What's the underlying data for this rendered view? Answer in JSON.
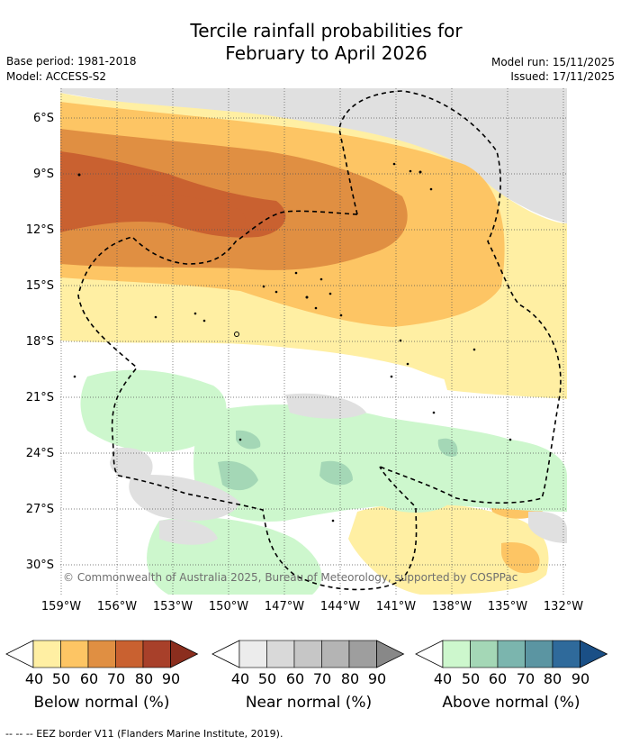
{
  "title": {
    "line1": "Tercile rainfall probabilities for",
    "line2": "February to April 2026"
  },
  "meta": {
    "base_period": "Base period: 1981-2018",
    "model": "Model: ACCESS-S2",
    "model_run": "Model run: 15/11/2025",
    "issued": "Issued: 17/11/2025"
  },
  "map": {
    "lat_labels": [
      "6°S",
      "9°S",
      "12°S",
      "15°S",
      "18°S",
      "21°S",
      "24°S",
      "27°S",
      "30°S"
    ],
    "lon_labels": [
      "159°W",
      "156°W",
      "153°W",
      "150°W",
      "147°W",
      "144°W",
      "141°W",
      "138°W",
      "135°W",
      "132°W"
    ],
    "copyright": "© Commonwealth of Australia 2025, Bureau of Meteorology, supported by COSPPac"
  },
  "colorbars": [
    {
      "title": "Below normal (%)",
      "ticks": [
        "40",
        "50",
        "60",
        "70",
        "80",
        "90"
      ],
      "colors": [
        "#ffefa3",
        "#fdc564",
        "#e08f42",
        "#c96130",
        "#a8402a",
        "#8b2e1e"
      ]
    },
    {
      "title": "Near normal (%)",
      "ticks": [
        "40",
        "50",
        "60",
        "70",
        "80",
        "90"
      ],
      "colors": [
        "#ececec",
        "#d9d9d9",
        "#c6c6c6",
        "#b4b4b4",
        "#9e9e9e",
        "#888888"
      ]
    },
    {
      "title": "Above normal (%)",
      "ticks": [
        "40",
        "50",
        "60",
        "70",
        "80",
        "90"
      ],
      "colors": [
        "#cdf7cd",
        "#a4d7b6",
        "#7bb5ae",
        "#5b95a2",
        "#2f6a9b",
        "#1a4f86"
      ]
    }
  ],
  "footnote": "--  --  -- EEZ border V11 (Flanders Marine Institute, 2019)."
}
